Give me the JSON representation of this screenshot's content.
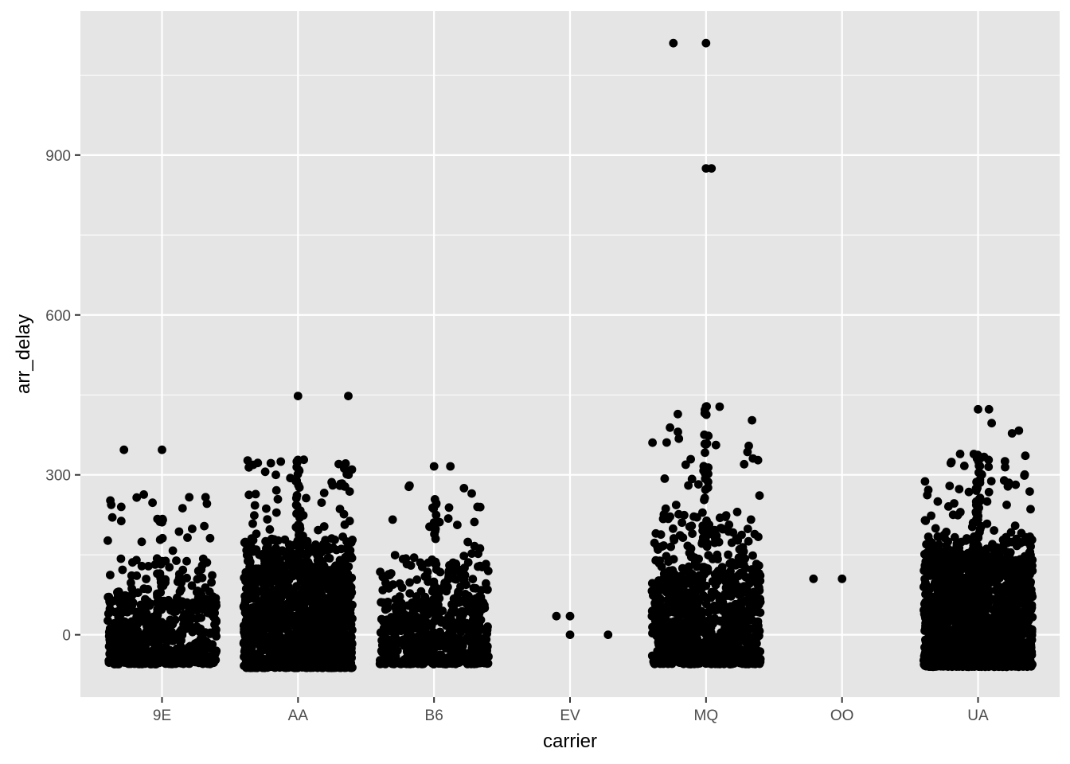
{
  "chart_data": {
    "type": "scatter",
    "jitter": true,
    "title": "",
    "xlabel": "carrier",
    "ylabel": "arr_delay",
    "categories": [
      "9E",
      "AA",
      "B6",
      "EV",
      "MQ",
      "OO",
      "UA"
    ],
    "ylim": [
      -117,
      1170
    ],
    "yticks": [
      0,
      300,
      600,
      900
    ],
    "grid": true,
    "legend": "none",
    "colors": {
      "panel": "#e5e5e5",
      "grid": "#ffffff",
      "point": "#000000",
      "tick_text": "#4d4d4d"
    },
    "groups": [
      {
        "category": "9E",
        "n": 650,
        "typical_range": [
          -55,
          60
        ],
        "tail_max": 265,
        "extremes": [
          [
            -0.28,
            347
          ],
          [
            0,
            347
          ],
          [
            -0.38,
            252
          ],
          [
            -0.3,
            240
          ],
          [
            0.2,
            258
          ],
          [
            0.32,
            258
          ]
        ]
      },
      {
        "category": "AA",
        "n": 1600,
        "typical_range": [
          -62,
          110
        ],
        "tail_max": 330,
        "extremes": [
          [
            0,
            448
          ],
          [
            0.37,
            448
          ],
          [
            -0.37,
            327
          ],
          [
            -0.2,
            322
          ],
          [
            0,
            328
          ],
          [
            0.34,
            312
          ]
        ]
      },
      {
        "category": "B6",
        "n": 650,
        "typical_range": [
          -55,
          60
        ],
        "tail_max": 280,
        "extremes": [
          [
            0,
            316
          ],
          [
            0.12,
            316
          ],
          [
            -0.18,
            280
          ],
          [
            0.22,
            275
          ],
          [
            0.32,
            240
          ]
        ]
      },
      {
        "category": "EV",
        "n": 4,
        "typical_range": [
          0,
          35
        ],
        "tail_max": 35,
        "extremes": [
          [
            -0.1,
            35
          ],
          [
            0,
            35
          ],
          [
            0,
            0
          ],
          [
            0.28,
            0
          ]
        ]
      },
      {
        "category": "MQ",
        "n": 1000,
        "typical_range": [
          -55,
          110
        ],
        "tail_max": 430,
        "extremes": [
          [
            -0.24,
            1110
          ],
          [
            0,
            1110
          ],
          [
            0,
            875
          ],
          [
            0.04,
            875
          ],
          [
            0,
            428
          ],
          [
            0.1,
            428
          ],
          [
            -0.2,
            368
          ],
          [
            0.28,
            320
          ]
        ]
      },
      {
        "category": "OO",
        "n": 2,
        "typical_range": [
          105,
          105
        ],
        "tail_max": 105,
        "extremes": [
          [
            -0.21,
            105
          ],
          [
            0,
            105
          ]
        ]
      },
      {
        "category": "UA",
        "n": 1700,
        "typical_range": [
          -60,
          120
        ],
        "tail_max": 340,
        "extremes": [
          [
            0,
            423
          ],
          [
            0.08,
            423
          ],
          [
            0.1,
            397
          ],
          [
            0.3,
            383
          ],
          [
            0.25,
            378
          ],
          [
            -0.2,
            322
          ]
        ]
      }
    ]
  }
}
